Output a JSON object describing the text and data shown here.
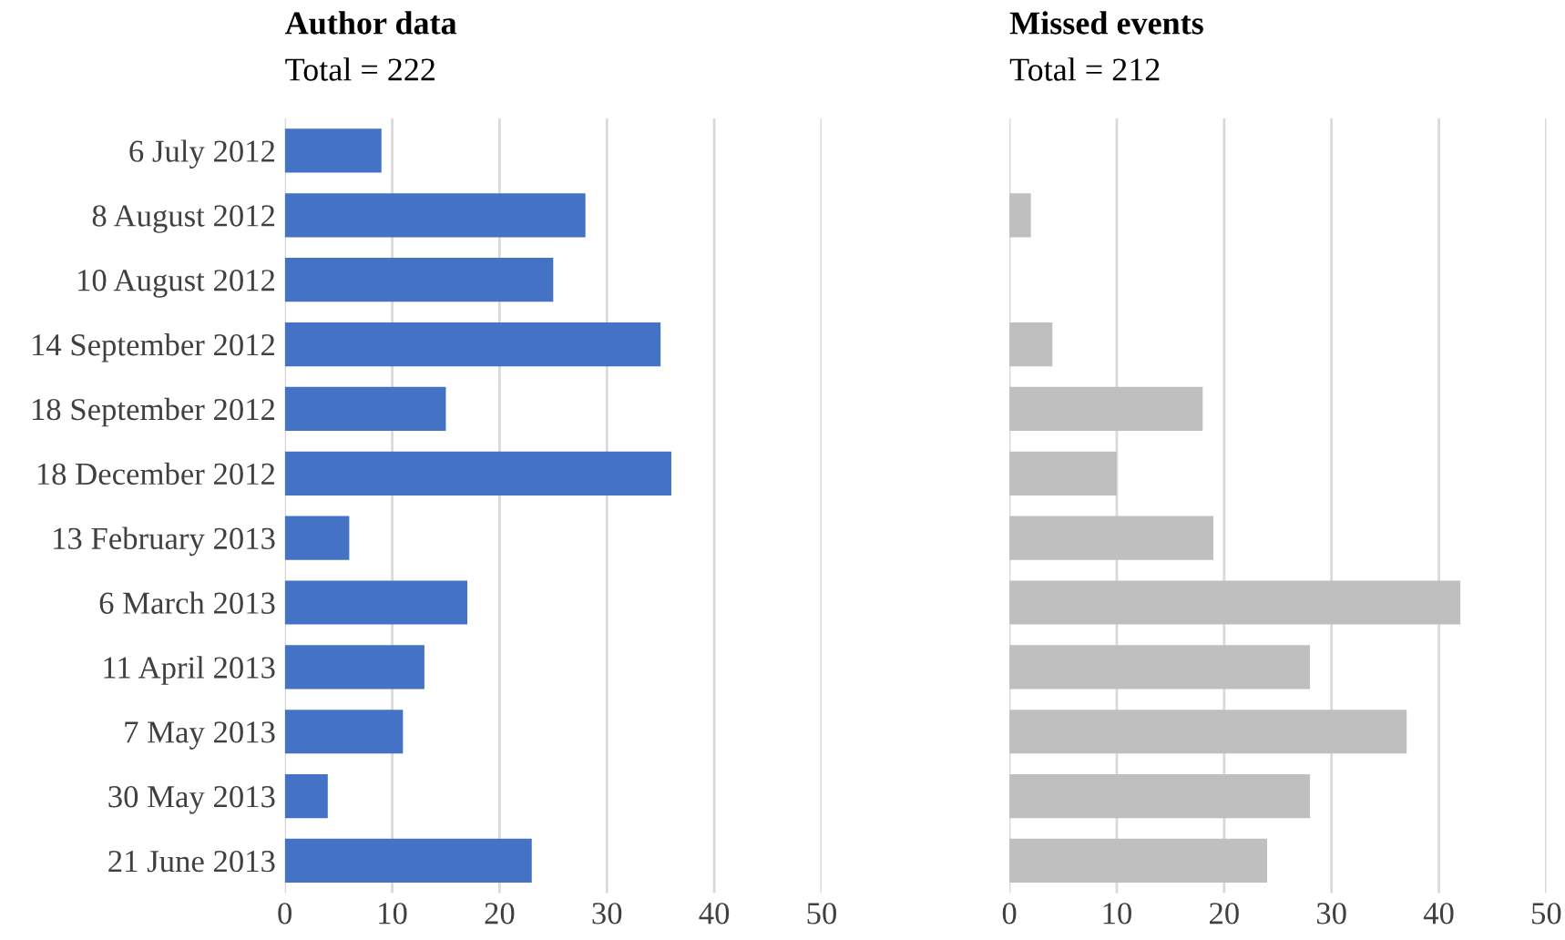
{
  "chart_data": [
    {
      "type": "bar",
      "orientation": "horizontal",
      "title": "Author data",
      "subtitle": "Total = 222",
      "categories": [
        "6 July 2012",
        "8 August 2012",
        "10 August 2012",
        "14 September 2012",
        "18 September 2012",
        "18 December 2012",
        "13 February 2013",
        "6 March 2013",
        "11 April 2013",
        "7 May 2013",
        "30 May 2013",
        "21 June 2013"
      ],
      "values": [
        9,
        28,
        25,
        35,
        15,
        36,
        6,
        17,
        13,
        11,
        4,
        23
      ],
      "color": "#4472c4",
      "xlim": [
        0,
        50
      ],
      "xticks": [
        0,
        10,
        20,
        30,
        40,
        50
      ],
      "grid": "x",
      "legend": false
    },
    {
      "type": "bar",
      "orientation": "horizontal",
      "title": "Missed events",
      "subtitle": "Total = 212",
      "categories": [
        null,
        null,
        null,
        null,
        null,
        null,
        null,
        null,
        null,
        null,
        null,
        null
      ],
      "values": [
        0,
        2,
        0,
        4,
        18,
        10,
        19,
        42,
        28,
        37,
        28,
        24
      ],
      "color": "#bfbfbf",
      "xlim": [
        0,
        50
      ],
      "xticks": [
        0,
        10,
        20,
        30,
        40,
        50
      ],
      "grid": "x",
      "legend": false,
      "tick_labels": "x"
    }
  ]
}
